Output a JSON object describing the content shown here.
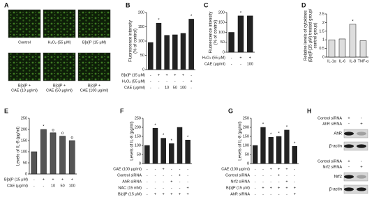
{
  "panel_a": {
    "label": "A",
    "images": [
      {
        "lines": [
          "Control"
        ]
      },
      {
        "lines": [
          "H₂O₂ (55 μM)"
        ]
      },
      {
        "lines": [
          "B[α]P (15 μM)"
        ]
      },
      {
        "lines": [
          "B[α]P +",
          "CAE (10 μg/ml)"
        ]
      },
      {
        "lines": [
          "B[α]P +",
          "CAE (50 μg/ml)"
        ]
      },
      {
        "lines": [
          "B[α]P +",
          "CAE (100 μg/ml)"
        ]
      }
    ]
  },
  "chart_data": [
    {
      "label": "B",
      "type": "bar",
      "color": "#222",
      "ylabel": [
        "Fluorescence intensity",
        "(% of control)"
      ],
      "ylim": [
        0,
        200
      ],
      "yticks": [
        0,
        50,
        100,
        150,
        200
      ],
      "values": [
        95,
        163,
        120,
        122,
        127,
        177
      ],
      "sig": [
        null,
        "*",
        null,
        null,
        null,
        "*"
      ],
      "rows": [
        {
          "name": "B[α]P (15 μM)",
          "cells": [
            "-",
            "+",
            "+",
            "+",
            "+",
            "-"
          ]
        },
        {
          "name": "H₂O₂ (55 μM)",
          "cells": [
            "-",
            "-",
            "-",
            "-",
            "-",
            "+"
          ]
        },
        {
          "name": "CAE (μg/ml)",
          "cells": [
            "-",
            "-",
            "10",
            "50",
            "100",
            "-"
          ]
        }
      ]
    },
    {
      "label": "C",
      "type": "bar",
      "color": "#222",
      "ylabel": [
        "Fluorescence intensity",
        "(% of control)"
      ],
      "ylim": [
        0,
        200
      ],
      "yticks": [
        0,
        50,
        100,
        150,
        200
      ],
      "values": [
        100,
        183,
        183
      ],
      "sig": [
        null,
        "*",
        null
      ],
      "rows": [
        {
          "name": "H₂O₂ (55 μM)",
          "cells": [
            "-",
            "+",
            "+"
          ]
        },
        {
          "name": "CAE (μg/ml)",
          "cells": [
            "-",
            "-",
            "100"
          ]
        }
      ]
    },
    {
      "label": "D",
      "type": "bar",
      "color": "#ddd",
      "ylabel": [
        "Relative levels of cytokines",
        "(B[α]P(15 μM) treated group/",
        "control group)"
      ],
      "ylim": [
        0,
        2.5
      ],
      "yticks": [
        0,
        0.5,
        1,
        1.5,
        2,
        2.5
      ],
      "categories": [
        "IL-1α",
        "IL-6",
        "IL-8",
        "TNF-α"
      ],
      "values": [
        1.0,
        1.05,
        1.9,
        0.95
      ],
      "sig": [
        null,
        null,
        "*",
        null
      ]
    },
    {
      "label": "E",
      "type": "bar",
      "color": "#555",
      "ylabel": [
        "Levels of IL-8 (pg/ml)"
      ],
      "ylim": [
        0,
        250
      ],
      "yticks": [
        0,
        50,
        100,
        150,
        200,
        250
      ],
      "values": [
        100,
        200,
        185,
        170,
        150
      ],
      "sig": [
        null,
        "*",
        "o",
        "o",
        "o"
      ],
      "rows": [
        {
          "name": "B[α]P (15 μM)",
          "cells": [
            "-",
            "+",
            "+",
            "+",
            "+"
          ]
        },
        {
          "name": "CAE (μg/ml)",
          "cells": [
            "-",
            "-",
            "10",
            "50",
            "100"
          ]
        }
      ]
    },
    {
      "label": "F",
      "type": "bar",
      "color": "#222",
      "ylabel": [
        "Levels of IL-8 (pg/ml)"
      ],
      "ylim": [
        0,
        250
      ],
      "yticks": [
        0,
        50,
        100,
        150,
        200,
        250
      ],
      "values": [
        100,
        195,
        140,
        110,
        200,
        130
      ],
      "sig": [
        null,
        "*",
        "*",
        "*",
        null,
        "*"
      ],
      "rows": [
        {
          "name": "CAE (100 μg/ml)",
          "cells": [
            "-",
            "-",
            "+",
            "-",
            "-",
            "-"
          ]
        },
        {
          "name": "Control siRNA",
          "cells": [
            "-",
            "-",
            "-",
            "-",
            "+",
            "-"
          ]
        },
        {
          "name": "AhR siRNA",
          "cells": [
            "-",
            "-",
            "-",
            "+",
            "-",
            "-"
          ]
        },
        {
          "name": "NAC (15 mM)",
          "cells": [
            "-",
            "-",
            "-",
            "-",
            "-",
            "+"
          ]
        },
        {
          "name": "B[α]P (15 μM)",
          "cells": [
            "-",
            "+",
            "+",
            "+",
            "+",
            "+"
          ]
        }
      ]
    },
    {
      "label": "G",
      "type": "bar",
      "color": "#222",
      "ylabel": [
        "Levels of IL-8 (pg/ml)"
      ],
      "ylim": [
        0,
        250
      ],
      "yticks": [
        0,
        50,
        100,
        150,
        200,
        250
      ],
      "values": [
        100,
        200,
        145,
        150,
        185,
        95
      ],
      "sig": [
        null,
        "*",
        "*",
        "*",
        "*",
        "*"
      ],
      "rows": [
        {
          "name": "CAE (100 μg/ml)",
          "cells": [
            "-",
            "-",
            "+",
            "+",
            "+",
            "-"
          ]
        },
        {
          "name": "Control siRNA",
          "cells": [
            "-",
            "-",
            "-",
            "+",
            "-",
            "-"
          ]
        },
        {
          "name": "Nrf2 siRNA",
          "cells": [
            "-",
            "-",
            "-",
            "-",
            "+",
            "-"
          ]
        },
        {
          "name": "B[α]P (15 μM)",
          "cells": [
            "-",
            "+",
            "+",
            "+",
            "+",
            "+"
          ]
        },
        {
          "name": "AhR siRNA",
          "cells": [
            "-",
            "-",
            "-",
            "-",
            "-",
            "+"
          ]
        }
      ]
    }
  ],
  "panel_h": {
    "label": "H",
    "blots": [
      {
        "rows": [
          {
            "name": "Control siRNA",
            "cells": [
              "+",
              "-"
            ]
          },
          {
            "name": "AhR siRNA",
            "cells": [
              "-",
              "+"
            ]
          }
        ],
        "bands": [
          "AhR",
          "β-actin"
        ]
      },
      {
        "rows": [
          {
            "name": "Control siRNA",
            "cells": [
              "+",
              "-"
            ]
          },
          {
            "name": "Nrf2 siRNA",
            "cells": [
              "-",
              "+"
            ]
          }
        ],
        "bands": [
          "Nrf2",
          "β-actin"
        ]
      }
    ]
  }
}
